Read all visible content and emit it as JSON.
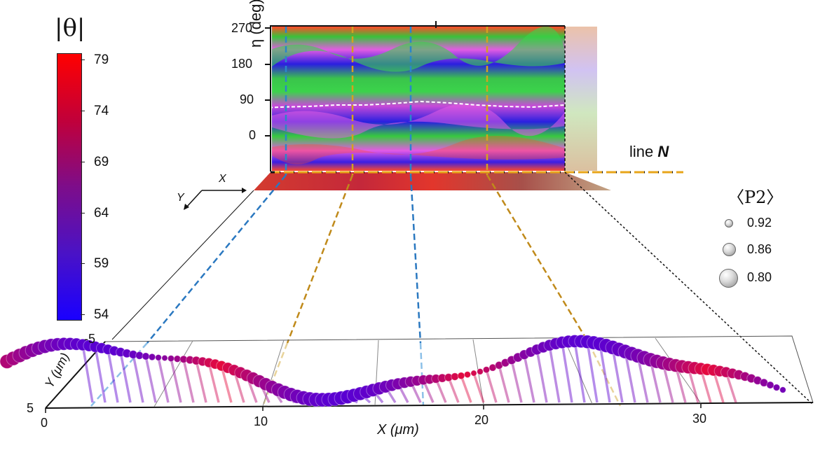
{
  "colorbar": {
    "title": "|θ|",
    "ticks": [
      "79",
      "74",
      "69",
      "64",
      "59",
      "54"
    ],
    "colors": {
      "high": "#ff0000",
      "low": "#1a00ff"
    }
  },
  "top_map": {
    "ylabel": "η (deg)",
    "yticks": [
      "270",
      "180",
      "90",
      "0"
    ]
  },
  "line_label": {
    "text": "line ",
    "emph": "N"
  },
  "small_axes": {
    "y": "Y",
    "x": "X"
  },
  "p2_legend": {
    "title": "〈P2〉",
    "items": [
      {
        "value": "0.92"
      },
      {
        "value": "0.86"
      },
      {
        "value": "0.80"
      }
    ]
  },
  "bottom_plot": {
    "xlabel": "X (μm)",
    "ylabel": "Y (μm)",
    "xticks": [
      "0",
      "10",
      "20",
      "30"
    ],
    "yticks": [
      "-5",
      "5"
    ]
  }
}
